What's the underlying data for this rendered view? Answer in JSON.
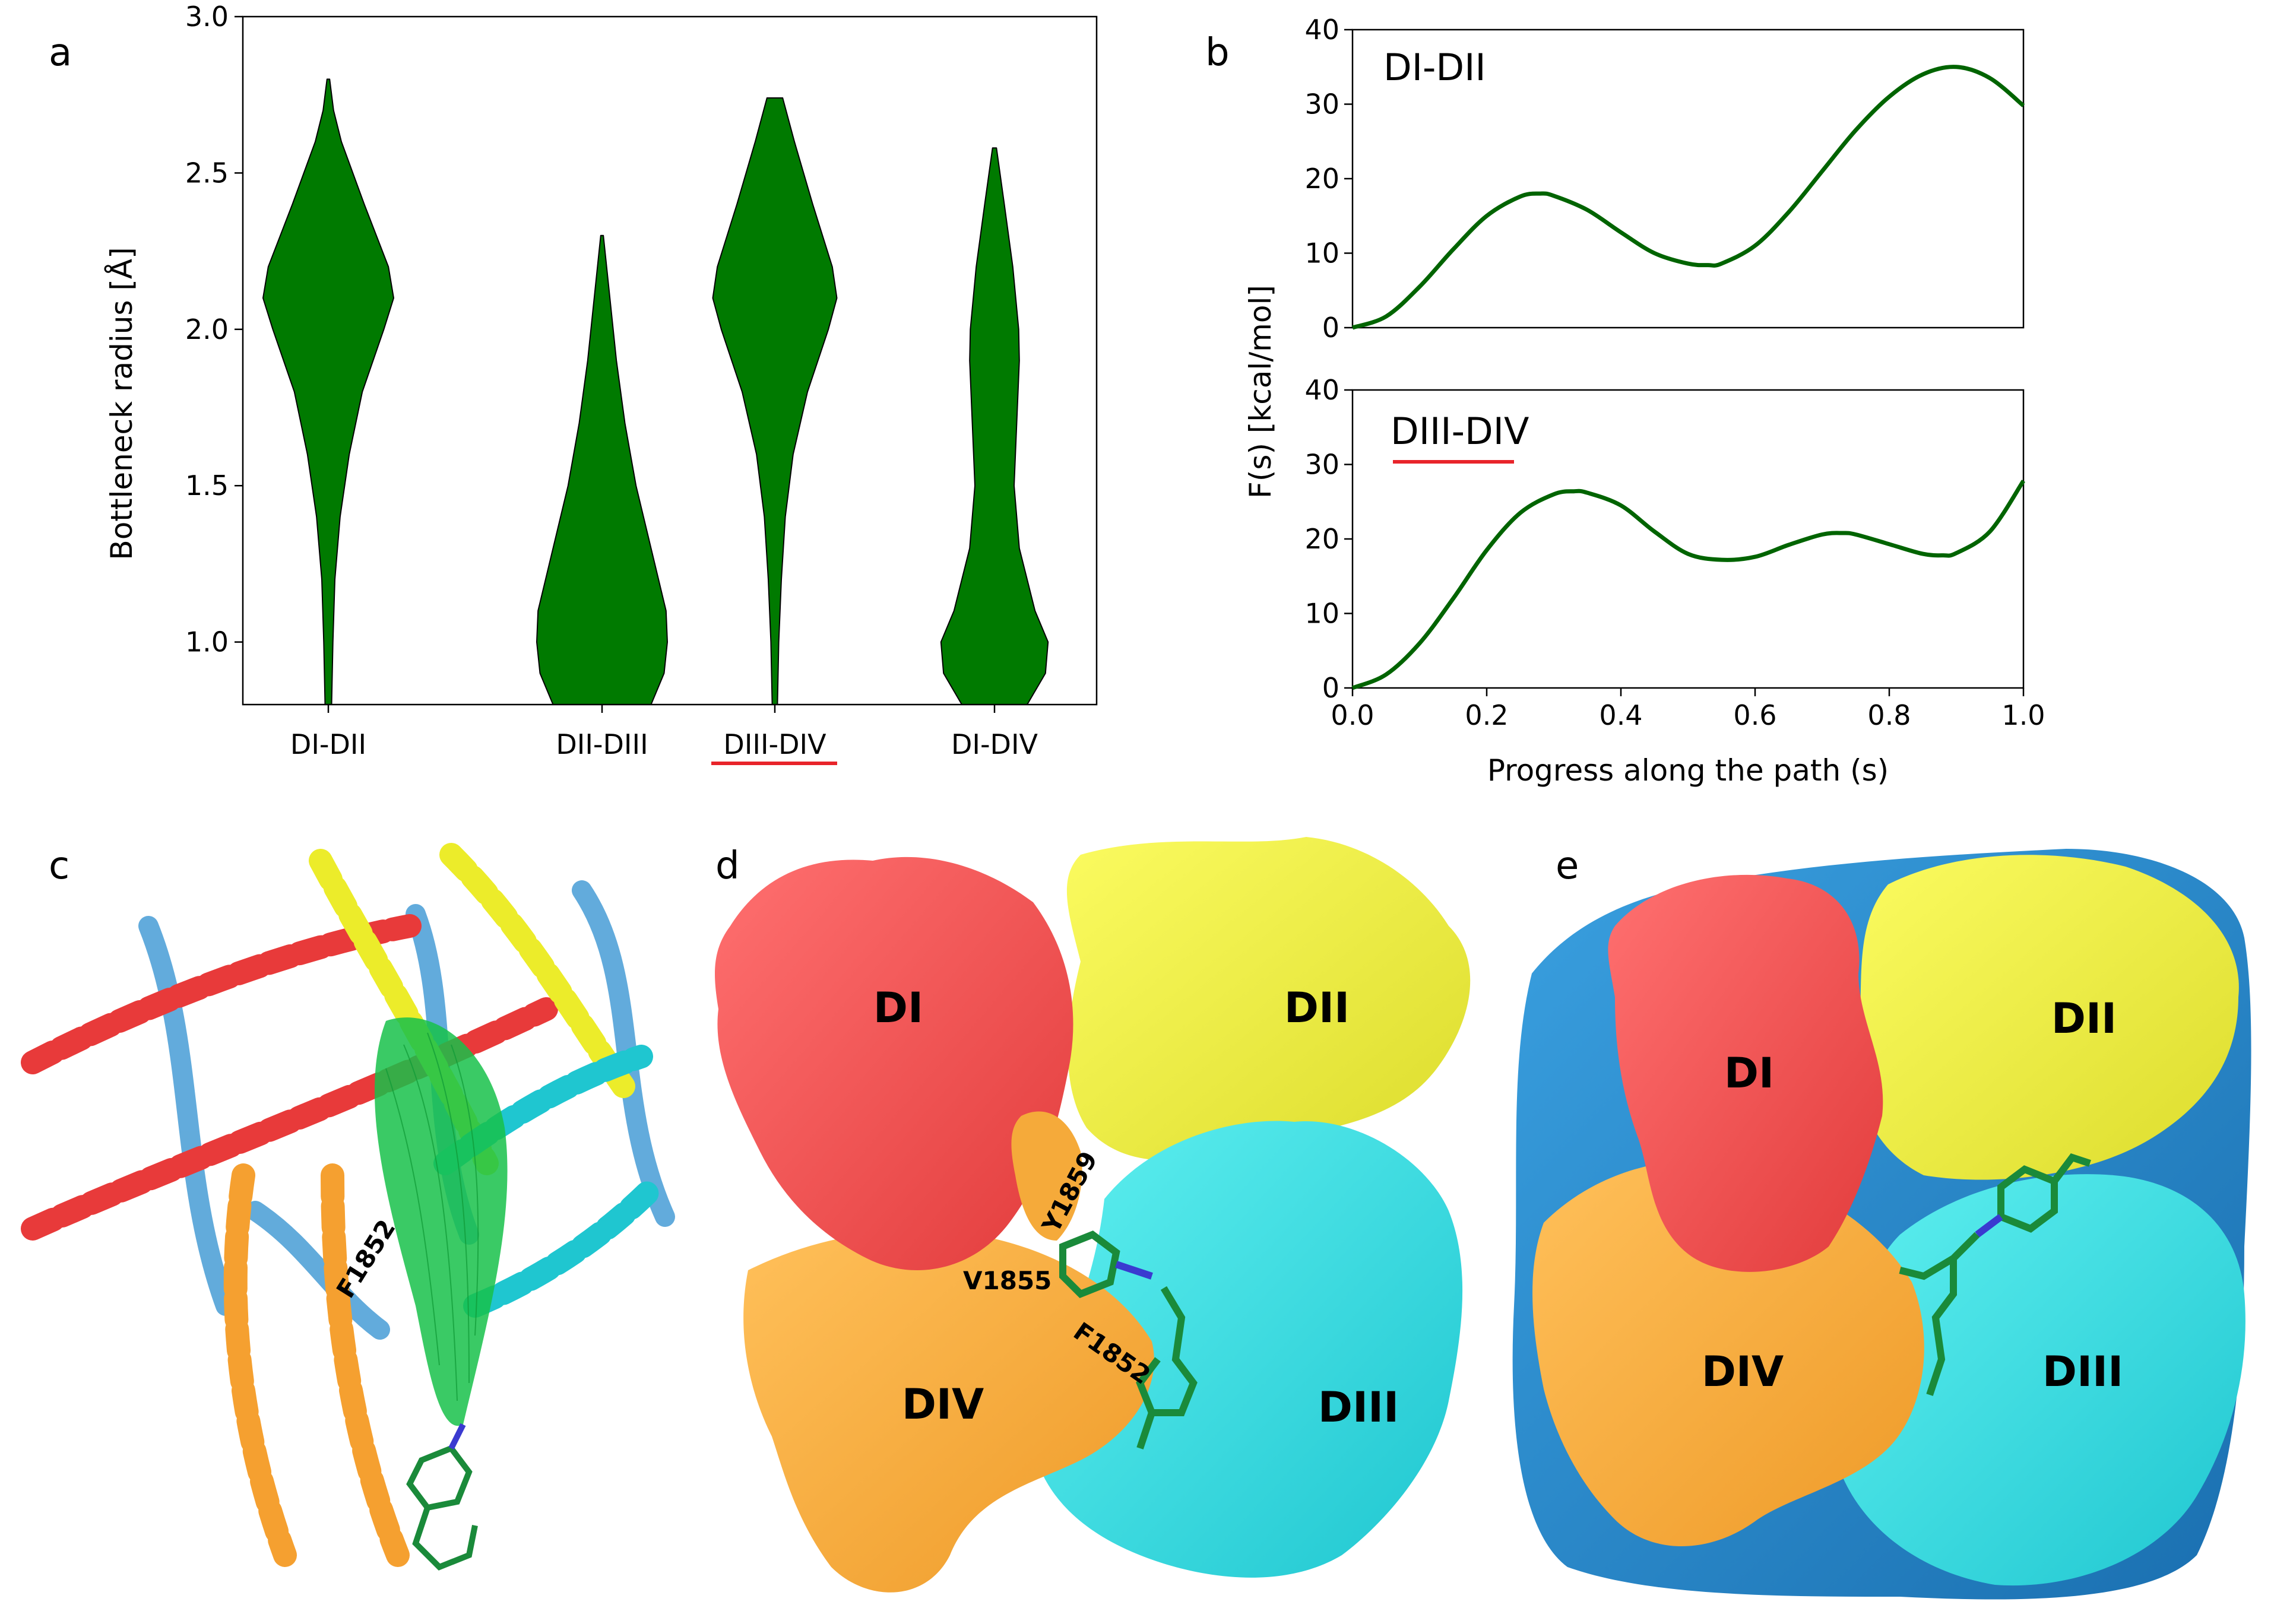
{
  "panel_labels": {
    "a": "a",
    "b": "b",
    "c": "c",
    "d": "d",
    "e": "e"
  },
  "chart_data": [
    {
      "type": "violin",
      "panel": "a",
      "ylabel": "Bottleneck radius [Å]",
      "ylim": [
        0.8,
        3.0
      ],
      "yticks": [
        "1.0",
        "1.5",
        "2.0",
        "2.5",
        "3.0"
      ],
      "highlight_category": "DIII-DIV",
      "highlight_color": "#e8242a",
      "fill_color": "#007a00",
      "categories": [
        {
          "name": "DI-DII",
          "min": 0.8,
          "max": 2.8,
          "density": [
            [
              0.8,
              0.05
            ],
            [
              1.0,
              0.07
            ],
            [
              1.2,
              0.1
            ],
            [
              1.4,
              0.18
            ],
            [
              1.6,
              0.32
            ],
            [
              1.8,
              0.52
            ],
            [
              2.0,
              0.85
            ],
            [
              2.1,
              1.0
            ],
            [
              2.2,
              0.92
            ],
            [
              2.4,
              0.55
            ],
            [
              2.6,
              0.2
            ],
            [
              2.7,
              0.08
            ],
            [
              2.8,
              0.02
            ]
          ]
        },
        {
          "name": "DII-DIII",
          "min": 0.8,
          "max": 2.3,
          "density": [
            [
              0.8,
              0.75
            ],
            [
              0.9,
              0.95
            ],
            [
              1.0,
              1.0
            ],
            [
              1.1,
              0.98
            ],
            [
              1.3,
              0.75
            ],
            [
              1.5,
              0.52
            ],
            [
              1.7,
              0.35
            ],
            [
              1.9,
              0.22
            ],
            [
              2.1,
              0.12
            ],
            [
              2.2,
              0.07
            ],
            [
              2.3,
              0.02
            ]
          ]
        },
        {
          "name": "DIII-DIV",
          "min": 0.8,
          "max": 2.74,
          "density": [
            [
              0.8,
              0.04
            ],
            [
              1.0,
              0.06
            ],
            [
              1.2,
              0.1
            ],
            [
              1.4,
              0.16
            ],
            [
              1.6,
              0.28
            ],
            [
              1.8,
              0.5
            ],
            [
              2.0,
              0.82
            ],
            [
              2.1,
              0.95
            ],
            [
              2.2,
              0.88
            ],
            [
              2.4,
              0.58
            ],
            [
              2.6,
              0.3
            ],
            [
              2.74,
              0.12
            ]
          ]
        },
        {
          "name": "DI-DIV",
          "min": 0.8,
          "max": 2.58,
          "density": [
            [
              0.8,
              0.5
            ],
            [
              0.9,
              0.78
            ],
            [
              1.0,
              0.82
            ],
            [
              1.1,
              0.62
            ],
            [
              1.3,
              0.38
            ],
            [
              1.5,
              0.3
            ],
            [
              1.7,
              0.34
            ],
            [
              1.9,
              0.38
            ],
            [
              2.0,
              0.37
            ],
            [
              2.2,
              0.28
            ],
            [
              2.4,
              0.15
            ],
            [
              2.58,
              0.03
            ]
          ]
        }
      ]
    },
    {
      "type": "line",
      "panel": "b",
      "series_label": "DI-DII",
      "xlim": [
        0.0,
        1.0
      ],
      "ylim": [
        0,
        40
      ],
      "yticks": [
        "0",
        "10",
        "20",
        "30",
        "40"
      ],
      "color": "#006400",
      "x": [
        0.0,
        0.05,
        0.1,
        0.15,
        0.2,
        0.25,
        0.28,
        0.3,
        0.35,
        0.4,
        0.45,
        0.5,
        0.53,
        0.55,
        0.6,
        0.65,
        0.7,
        0.75,
        0.8,
        0.85,
        0.9,
        0.95,
        1.0
      ],
      "y": [
        0.0,
        1.5,
        5.5,
        10.5,
        15.0,
        17.6,
        18.0,
        17.7,
        15.8,
        12.8,
        10.0,
        8.6,
        8.4,
        8.6,
        11.0,
        15.5,
        21.0,
        26.5,
        31.0,
        34.0,
        35.0,
        33.5,
        29.8
      ]
    },
    {
      "type": "line",
      "panel": "b",
      "series_label": "DIII-DIV",
      "highlight_color": "#e8242a",
      "xlim": [
        0.0,
        1.0
      ],
      "ylim": [
        0,
        40
      ],
      "yticks": [
        "0",
        "10",
        "20",
        "30",
        "40"
      ],
      "xticks": [
        "0.0",
        "0.2",
        "0.4",
        "0.6",
        "0.8",
        "1.0"
      ],
      "xlabel": "Progress along the path (s)",
      "ylabel": "F(s) [kcal/mol]",
      "color": "#006400",
      "x": [
        0.0,
        0.05,
        0.1,
        0.15,
        0.2,
        0.25,
        0.3,
        0.33,
        0.35,
        0.4,
        0.45,
        0.5,
        0.55,
        0.6,
        0.65,
        0.7,
        0.73,
        0.75,
        0.8,
        0.85,
        0.88,
        0.9,
        0.95,
        1.0
      ],
      "y": [
        0.0,
        1.8,
        6.0,
        12.0,
        18.5,
        23.5,
        26.0,
        26.4,
        26.2,
        24.5,
        21.0,
        18.0,
        17.2,
        17.6,
        19.2,
        20.6,
        20.8,
        20.6,
        19.3,
        18.0,
        17.8,
        18.1,
        21.0,
        27.8
      ]
    }
  ],
  "panel_a_categories_text": [
    "DI-DII",
    "DII-DIII",
    "DIII-DIV",
    "DI-DIV"
  ],
  "panel_b": {
    "top_label": "DI-DII",
    "bottom_label": "DIII-DIV"
  },
  "panel_c": {
    "residue": "F1852"
  },
  "panel_d": {
    "domains": {
      "di": "DI",
      "dii": "DII",
      "diii": "DIII",
      "div": "DIV"
    },
    "residues": {
      "y1859": "Y1859",
      "v1855": "V1855",
      "f1852": "F1852"
    }
  },
  "panel_e": {
    "domains": {
      "di": "DI",
      "dii": "DII",
      "diii": "DIII",
      "div": "DIV"
    }
  },
  "colors": {
    "red": "#f04a4a",
    "yellow": "#f2f23a",
    "cyan": "#2ee0e0",
    "orange": "#f5aa3a",
    "blue": "#2e8fd0",
    "green": "#18b84a",
    "highlight": "#e8242a"
  }
}
